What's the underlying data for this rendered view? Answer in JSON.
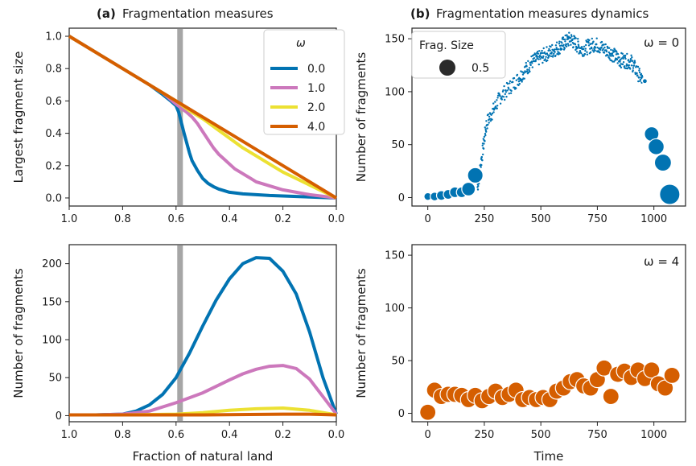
{
  "panels": {
    "a": {
      "letter": "(a)",
      "title": "Fragmentation measures"
    },
    "b": {
      "letter": "(b)",
      "title": "Fragmentation measures dynamics"
    }
  },
  "legend_omega": {
    "title": "ω",
    "entries": [
      {
        "label": "0.0",
        "color": "#0173b2"
      },
      {
        "label": "1.0",
        "color": "#cc78bc"
      },
      {
        "label": "2.0",
        "color": "#ece133"
      },
      {
        "label": "4.0",
        "color": "#d55e00"
      }
    ]
  },
  "legend_size": {
    "title": "Frag. Size",
    "label": "0.5"
  },
  "annotations": {
    "omega0": "ω = 0",
    "omega4": "ω = 4"
  },
  "chart_data": [
    {
      "id": "a-top",
      "type": "line",
      "xlabel": "",
      "ylabel": "Largest fragment size",
      "xlim": [
        1.0,
        0.0
      ],
      "ylim": [
        -0.05,
        1.05
      ],
      "xticks": [
        "1.0",
        "0.8",
        "0.6",
        "0.4",
        "0.2",
        "0.0"
      ],
      "yticks": [
        "0.0",
        "0.2",
        "0.4",
        "0.6",
        "0.8",
        "1.0"
      ],
      "vline": 0.585,
      "series": [
        {
          "name": "0.0",
          "color": "#0173b2",
          "x": [
            1.0,
            0.9,
            0.8,
            0.7,
            0.65,
            0.62,
            0.6,
            0.59,
            0.57,
            0.55,
            0.54,
            0.52,
            0.5,
            0.48,
            0.46,
            0.44,
            0.42,
            0.4,
            0.35,
            0.3,
            0.25,
            0.2,
            0.1,
            0.0
          ],
          "y": [
            1.0,
            0.9,
            0.8,
            0.7,
            0.64,
            0.6,
            0.57,
            0.53,
            0.4,
            0.28,
            0.23,
            0.17,
            0.12,
            0.09,
            0.07,
            0.055,
            0.045,
            0.035,
            0.025,
            0.02,
            0.015,
            0.012,
            0.006,
            0.0
          ]
        },
        {
          "name": "1.0",
          "color": "#cc78bc",
          "x": [
            1.0,
            0.9,
            0.8,
            0.7,
            0.65,
            0.6,
            0.56,
            0.54,
            0.52,
            0.5,
            0.48,
            0.46,
            0.44,
            0.42,
            0.4,
            0.38,
            0.36,
            0.34,
            0.32,
            0.3,
            0.25,
            0.2,
            0.15,
            0.1,
            0.05,
            0.0
          ],
          "y": [
            1.0,
            0.9,
            0.8,
            0.7,
            0.65,
            0.58,
            0.53,
            0.5,
            0.46,
            0.41,
            0.36,
            0.31,
            0.27,
            0.24,
            0.21,
            0.18,
            0.16,
            0.14,
            0.12,
            0.1,
            0.075,
            0.05,
            0.035,
            0.02,
            0.01,
            0.0
          ]
        },
        {
          "name": "2.0",
          "color": "#ece133",
          "x": [
            1.0,
            0.8,
            0.6,
            0.55,
            0.5,
            0.45,
            0.4,
            0.35,
            0.3,
            0.25,
            0.2,
            0.15,
            0.1,
            0.05,
            0.0
          ],
          "y": [
            1.0,
            0.8,
            0.6,
            0.54,
            0.49,
            0.43,
            0.37,
            0.31,
            0.26,
            0.21,
            0.16,
            0.12,
            0.08,
            0.04,
            0.0
          ]
        },
        {
          "name": "4.0",
          "color": "#d55e00",
          "x": [
            1.0,
            0.8,
            0.6,
            0.4,
            0.2,
            0.0
          ],
          "y": [
            1.0,
            0.8,
            0.6,
            0.4,
            0.2,
            0.0
          ]
        }
      ]
    },
    {
      "id": "a-bottom",
      "type": "line",
      "xlabel": "Fraction of natural land",
      "ylabel": "Number of fragments",
      "xlim": [
        1.0,
        0.0
      ],
      "ylim": [
        -8,
        225
      ],
      "xticks": [
        "1.0",
        "0.8",
        "0.6",
        "0.4",
        "0.2",
        "0.0"
      ],
      "yticks": [
        "0",
        "50",
        "100",
        "150",
        "200"
      ],
      "vline": 0.585,
      "series": [
        {
          "name": "0.0",
          "color": "#0173b2",
          "x": [
            1.0,
            0.9,
            0.8,
            0.75,
            0.7,
            0.65,
            0.6,
            0.55,
            0.5,
            0.45,
            0.4,
            0.35,
            0.3,
            0.25,
            0.2,
            0.15,
            0.1,
            0.05,
            0.0
          ],
          "y": [
            1,
            1,
            2,
            6,
            14,
            28,
            50,
            82,
            118,
            152,
            180,
            200,
            208,
            207,
            190,
            160,
            110,
            50,
            2
          ]
        },
        {
          "name": "1.0",
          "color": "#cc78bc",
          "x": [
            1.0,
            0.9,
            0.8,
            0.7,
            0.6,
            0.5,
            0.4,
            0.35,
            0.3,
            0.25,
            0.2,
            0.15,
            0.1,
            0.05,
            0.0
          ],
          "y": [
            1,
            1,
            2,
            6,
            17,
            30,
            47,
            55,
            61,
            65,
            66,
            62,
            48,
            25,
            2
          ]
        },
        {
          "name": "2.0",
          "color": "#ece133",
          "x": [
            1.0,
            0.8,
            0.6,
            0.5,
            0.4,
            0.3,
            0.2,
            0.1,
            0.0
          ],
          "y": [
            1,
            1,
            2,
            4,
            7,
            9,
            10,
            7,
            1
          ]
        },
        {
          "name": "4.0",
          "color": "#d55e00",
          "x": [
            1.0,
            0.5,
            0.2,
            0.1,
            0.0
          ],
          "y": [
            1,
            1,
            2,
            2,
            1
          ]
        }
      ]
    },
    {
      "id": "b-top",
      "type": "scatter",
      "xlabel": "",
      "ylabel": "Number of fragments",
      "xlim": [
        -70,
        1140
      ],
      "ylim": [
        -8,
        160
      ],
      "xticks": [
        0,
        250,
        500,
        750,
        1000
      ],
      "yticks": [
        0,
        50,
        100,
        150
      ],
      "color": "#0173b2",
      "big_points": [
        [
          0,
          0.16
        ],
        [
          30,
          0.18
        ],
        [
          60,
          0.2
        ],
        [
          90,
          0.2
        ],
        [
          120,
          0.22
        ],
        [
          150,
          0.22
        ],
        [
          180,
          0.28
        ],
        [
          210,
          0.32
        ],
        [
          960,
          0.05
        ],
        [
          990,
          0.3
        ],
        [
          1010,
          0.33
        ],
        [
          1040,
          0.35
        ],
        [
          1070,
          0.42
        ]
      ],
      "big_y": [
        1,
        1,
        2,
        3,
        5,
        5,
        8,
        21,
        110,
        60,
        48,
        33,
        3
      ],
      "cloud_segments": [
        [
          220,
          10,
          0
        ],
        [
          260,
          70,
          1
        ],
        [
          320,
          95,
          2
        ],
        [
          400,
          112,
          1
        ],
        [
          460,
          128,
          3
        ],
        [
          520,
          135,
          4
        ],
        [
          580,
          142,
          5
        ],
        [
          630,
          150,
          6
        ],
        [
          680,
          140,
          7
        ],
        [
          740,
          145,
          8
        ],
        [
          800,
          138,
          9
        ],
        [
          850,
          130,
          10
        ],
        [
          900,
          128,
          11
        ],
        [
          950,
          110,
          12
        ]
      ]
    },
    {
      "id": "b-bottom",
      "type": "scatter",
      "xlabel": "Time",
      "ylabel": "Number of fragments",
      "xlim": [
        -70,
        1140
      ],
      "ylim": [
        -8,
        160
      ],
      "xticks": [
        0,
        250,
        500,
        750,
        1000
      ],
      "yticks": [
        0,
        50,
        100,
        150
      ],
      "color": "#d55e00",
      "x": [
        0,
        30,
        60,
        90,
        120,
        150,
        180,
        210,
        240,
        270,
        300,
        330,
        360,
        390,
        420,
        450,
        480,
        510,
        540,
        570,
        600,
        630,
        660,
        690,
        720,
        750,
        780,
        810,
        840,
        870,
        900,
        930,
        960,
        990,
        1020,
        1050,
        1080
      ],
      "y": [
        1,
        22,
        16,
        18,
        18,
        17,
        13,
        17,
        12,
        16,
        21,
        15,
        18,
        22,
        13,
        15,
        13,
        15,
        13,
        21,
        24,
        30,
        32,
        26,
        24,
        32,
        43,
        16,
        37,
        40,
        34,
        41,
        33,
        41,
        28,
        24,
        36
      ]
    }
  ]
}
